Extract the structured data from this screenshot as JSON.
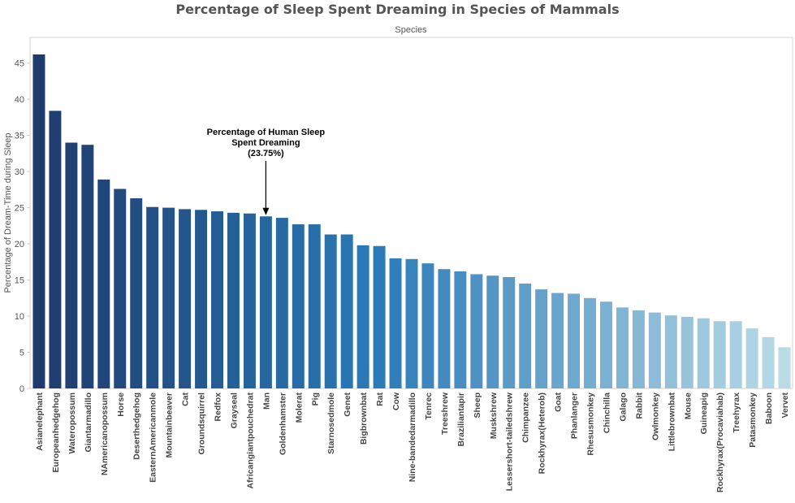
{
  "chart_data": {
    "type": "bar",
    "title": "Percentage of Sleep Spent Dreaming in Species of Mammals",
    "xlabel": "Species",
    "ylabel": "Percentage of Dream-Time during Sleep",
    "ylim": [
      0,
      48
    ],
    "yticks": [
      0,
      5,
      10,
      15,
      20,
      25,
      30,
      35,
      40,
      45
    ],
    "grid": false,
    "color_start": "#1f3b6b",
    "color_mid": "#2a7ab8",
    "color_end": "#b9dbe6",
    "categories": [
      "Asianelephant",
      "Europeanhedgehog",
      "Wateropossum",
      "Giantarmadillo",
      "NAmericanopossum",
      "Horse",
      "Deserthedgehog",
      "EasternAmericanmole",
      "Mountainbeaver",
      "Cat",
      "Groundsquirrel",
      "Redfox",
      "Grayseal",
      "Africangiantpouchedrat",
      "Man",
      "Goldenhamster",
      "Molerat",
      "Pig",
      "Starnosedmole",
      "Genet",
      "Bigbrownbat",
      "Rat",
      "Cow",
      "Nine-bandedarmadillo",
      "Tenrec",
      "Treeshrew",
      "Braziliantapir",
      "Sheep",
      "Muskshrew",
      "Lessershort-tailedshrew",
      "Chimpanzee",
      "Rockhyrax(Heterob)",
      "Goat",
      "Phanlanger",
      "Rhesusmonkey",
      "Chinchilla",
      "Galago",
      "Rabbit",
      "Owlmonkey",
      "Littlebrownbat",
      "Mouse",
      "Guineapig",
      "Rockhyrax(Procaviahab)",
      "Treehyrax",
      "Patasmonkey",
      "Baboon",
      "Vervet"
    ],
    "values": [
      46.2,
      38.4,
      34.0,
      33.7,
      28.9,
      27.6,
      26.3,
      25.1,
      25.0,
      24.8,
      24.7,
      24.5,
      24.3,
      24.2,
      23.8,
      23.6,
      22.7,
      22.7,
      21.3,
      21.3,
      19.8,
      19.7,
      18.0,
      17.9,
      17.3,
      16.5,
      16.2,
      15.8,
      15.6,
      15.4,
      14.5,
      13.7,
      13.2,
      13.1,
      12.5,
      12.0,
      11.2,
      10.8,
      10.5,
      10.1,
      9.9,
      9.7,
      9.3,
      9.3,
      8.3,
      7.1,
      5.7
    ],
    "annotation": {
      "lines": [
        "Percentage of Human Sleep",
        "Spent Dreaming",
        "(23.75%)"
      ],
      "category": "Man",
      "value": 23.75
    }
  }
}
